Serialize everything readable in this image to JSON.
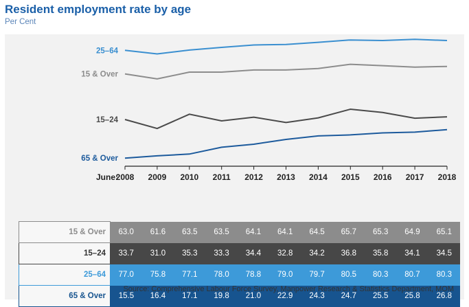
{
  "header": {
    "title": "Resident employment rate by age",
    "subtitle": "Per Cent"
  },
  "chart_data": {
    "type": "line",
    "x_prefix": "June:",
    "x": [
      "2008",
      "2009",
      "2010",
      "2011",
      "2012",
      "2013",
      "2014",
      "2015",
      "2016",
      "2017",
      "2018"
    ],
    "series": [
      {
        "name": "25–64",
        "color": "#3a8fd0",
        "values": [
          77.0,
          75.8,
          77.1,
          78.0,
          78.8,
          79.0,
          79.7,
          80.5,
          80.3,
          80.7,
          80.3
        ]
      },
      {
        "name": "15 & Over",
        "color": "#8c8c8c",
        "values": [
          63.0,
          61.6,
          63.5,
          63.5,
          64.1,
          64.1,
          64.5,
          65.7,
          65.3,
          64.9,
          65.1
        ]
      },
      {
        "name": "15–24",
        "color": "#4a4a4a",
        "values": [
          33.7,
          31.0,
          35.3,
          33.3,
          34.4,
          32.8,
          34.2,
          36.8,
          35.8,
          34.1,
          34.5
        ]
      },
      {
        "name": "65 & Over",
        "color": "#1c5a9c",
        "values": [
          15.5,
          16.4,
          17.1,
          19.8,
          21.0,
          22.9,
          24.3,
          24.7,
          25.5,
          25.8,
          26.8
        ]
      }
    ],
    "table": [
      {
        "name": "15 & Over",
        "color": "#8c8c8c",
        "label_color": "#8c8c8c",
        "values": [
          "63.0",
          "61.6",
          "63.5",
          "63.5",
          "64.1",
          "64.1",
          "64.5",
          "65.7",
          "65.3",
          "64.9",
          "65.1"
        ]
      },
      {
        "name": "15–24",
        "color": "#474747",
        "label_color": "#333333",
        "values": [
          "33.7",
          "31.0",
          "35.3",
          "33.3",
          "34.4",
          "32.8",
          "34.2",
          "36.8",
          "35.8",
          "34.1",
          "34.5"
        ]
      },
      {
        "name": "25–64",
        "color": "#3d9ad9",
        "label_color": "#3d9ad9",
        "values": [
          "77.0",
          "75.8",
          "77.1",
          "78.0",
          "78.8",
          "79.0",
          "79.7",
          "80.5",
          "80.3",
          "80.7",
          "80.3"
        ]
      },
      {
        "name": "65 & Over",
        "color": "#17548f",
        "label_color": "#17548f",
        "values": [
          "15.5",
          "16.4",
          "17.1",
          "19.8",
          "21.0",
          "22.9",
          "24.3",
          "24.7",
          "25.5",
          "25.8",
          "26.8"
        ]
      }
    ]
  },
  "footer": {
    "source": "Source: Comprehensive Labour Force Survey, Manpower Research & Statistics Department, MOM"
  }
}
